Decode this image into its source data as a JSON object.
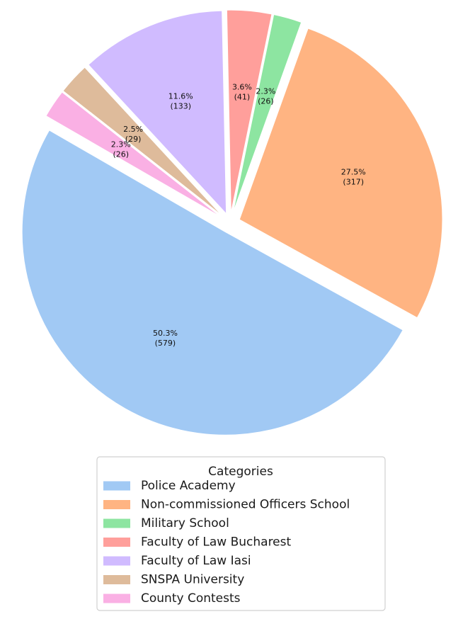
{
  "chart_data": {
    "type": "pie",
    "title": "",
    "legend": {
      "title": "Categories",
      "placement": "bottom-center"
    },
    "start_angle_deg": 150,
    "direction": "counterclockwise",
    "slices": [
      {
        "category": "Police Academy",
        "value": 579,
        "percent_label": "50.3%",
        "count_label": "(579)",
        "color": "#a1c9f4",
        "exploded": true
      },
      {
        "category": "Non-commissioned Officers School",
        "value": 317,
        "percent_label": "27.5%",
        "count_label": "(317)",
        "color": "#ffb482",
        "exploded": true
      },
      {
        "category": "Military School",
        "value": 26,
        "percent_label": "2.3%",
        "count_label": "(26)",
        "color": "#8de5a1",
        "exploded": true
      },
      {
        "category": "Faculty of Law Bucharest",
        "value": 41,
        "percent_label": "3.6%",
        "count_label": "(41)",
        "color": "#ff9f9b",
        "exploded": true
      },
      {
        "category": "Faculty of Law Iasi",
        "value": 133,
        "percent_label": "11.6%",
        "count_label": "(133)",
        "color": "#d0bbff",
        "exploded": true
      },
      {
        "category": "SNSPA University",
        "value": 29,
        "percent_label": "2.5%",
        "count_label": "(29)",
        "color": "#debb9b",
        "exploded": true
      },
      {
        "category": "County Contests",
        "value": 26,
        "percent_label": "2.3%",
        "count_label": "(26)",
        "color": "#fab0e4",
        "exploded": true
      }
    ]
  }
}
